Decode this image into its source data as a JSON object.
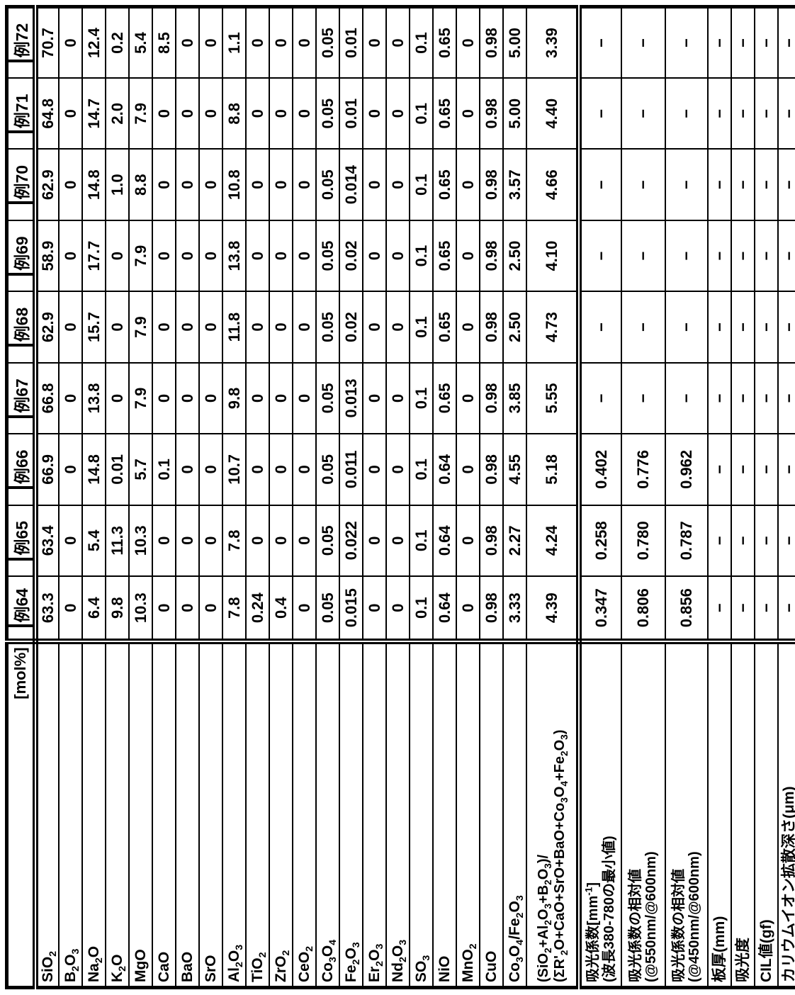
{
  "table": {
    "unit_label": "[mol%]",
    "column_headers": [
      "例64",
      "例65",
      "例66",
      "例67",
      "例68",
      "例69",
      "例70",
      "例71",
      "例72"
    ],
    "rows": [
      {
        "label": "SiO_2",
        "values": [
          "63.3",
          "63.4",
          "66.9",
          "66.8",
          "62.9",
          "58.9",
          "62.9",
          "64.8",
          "70.7"
        ]
      },
      {
        "label": "B_2O_3",
        "values": [
          "0",
          "0",
          "0",
          "0",
          "0",
          "0",
          "0",
          "0",
          "0"
        ]
      },
      {
        "label": "Na_2O",
        "values": [
          "6.4",
          "5.4",
          "14.8",
          "13.8",
          "15.7",
          "17.7",
          "14.8",
          "14.7",
          "12.4"
        ]
      },
      {
        "label": "K_2O",
        "values": [
          "9.8",
          "11.3",
          "0.01",
          "0",
          "0",
          "0",
          "1.0",
          "2.0",
          "0.2"
        ]
      },
      {
        "label": "MgO",
        "values": [
          "10.3",
          "10.3",
          "5.7",
          "7.9",
          "7.9",
          "7.9",
          "8.8",
          "7.9",
          "5.4"
        ]
      },
      {
        "label": "CaO",
        "values": [
          "0",
          "0",
          "0.1",
          "0",
          "0",
          "0",
          "0",
          "0",
          "8.5"
        ]
      },
      {
        "label": "BaO",
        "values": [
          "0",
          "0",
          "0",
          "0",
          "0",
          "0",
          "0",
          "0",
          "0"
        ]
      },
      {
        "label": "SrO",
        "values": [
          "0",
          "0",
          "0",
          "0",
          "0",
          "0",
          "0",
          "0",
          "0"
        ]
      },
      {
        "label": "Al_2O_3",
        "values": [
          "7.8",
          "7.8",
          "10.7",
          "9.8",
          "11.8",
          "13.8",
          "10.8",
          "8.8",
          "1.1"
        ]
      },
      {
        "label": "TiO_2",
        "values": [
          "0.24",
          "0",
          "0",
          "0",
          "0",
          "0",
          "0",
          "0",
          "0"
        ]
      },
      {
        "label": "ZrO_2",
        "values": [
          "0.4",
          "0",
          "0",
          "0",
          "0",
          "0",
          "0",
          "0",
          "0"
        ]
      },
      {
        "label": "CeO_2",
        "values": [
          "0",
          "0",
          "0",
          "0",
          "0",
          "0",
          "0",
          "0",
          "0"
        ]
      },
      {
        "label": "Co_3O_4",
        "values": [
          "0.05",
          "0.05",
          "0.05",
          "0.05",
          "0.05",
          "0.05",
          "0.05",
          "0.05",
          "0.05"
        ]
      },
      {
        "label": "Fe_2O_3",
        "values": [
          "0.015",
          "0.022",
          "0.011",
          "0.013",
          "0.02",
          "0.02",
          "0.014",
          "0.01",
          "0.01"
        ]
      },
      {
        "label": "Er_2O_3",
        "values": [
          "0",
          "0",
          "0",
          "0",
          "0",
          "0",
          "0",
          "0",
          "0"
        ]
      },
      {
        "label": "Nd_2O_3",
        "values": [
          "0",
          "0",
          "0",
          "0",
          "0",
          "0",
          "0",
          "0",
          "0"
        ]
      },
      {
        "label": "SO_3",
        "values": [
          "0.1",
          "0.1",
          "0.1",
          "0.1",
          "0.1",
          "0.1",
          "0.1",
          "0.1",
          "0.1"
        ]
      },
      {
        "label": "NiO",
        "values": [
          "0.64",
          "0.64",
          "0.64",
          "0.65",
          "0.65",
          "0.65",
          "0.65",
          "0.65",
          "0.65"
        ]
      },
      {
        "label": "MnO_2",
        "values": [
          "0",
          "0",
          "0",
          "0",
          "0",
          "0",
          "0",
          "0",
          "0"
        ]
      },
      {
        "label": "CuO",
        "values": [
          "0.98",
          "0.98",
          "0.98",
          "0.98",
          "0.98",
          "0.98",
          "0.98",
          "0.98",
          "0.98"
        ]
      },
      {
        "label": "Co_3O_4/Fe_2O_3",
        "values": [
          "3.33",
          "2.27",
          "4.55",
          "3.85",
          "2.50",
          "2.50",
          "3.57",
          "5.00",
          "5.00"
        ]
      },
      {
        "label": "(SiO_2+Al_2O_3+B_2O_3)/",
        "label2": "(ΣR'_2O+CaO+SrO+BaO+Co_3O_4+Fe_2O_3)",
        "section_end": true,
        "values": [
          "4.39",
          "4.24",
          "5.18",
          "5.55",
          "4.73",
          "4.10",
          "4.66",
          "4.40",
          "3.39"
        ]
      },
      {
        "label": "吸光係数[mm^{-1}]",
        "label2": "(波長380-780の最小値)",
        "values": [
          "0.347",
          "0.258",
          "0.402",
          "−",
          "−",
          "−",
          "−",
          "−",
          "−"
        ]
      },
      {
        "label": "吸光係数の相対値",
        "label2": "(@550nm/@600nm)",
        "values": [
          "0.806",
          "0.780",
          "0.776",
          "−",
          "−",
          "−",
          "−",
          "−",
          "−"
        ]
      },
      {
        "label": "吸光係数の相対値",
        "label2": "(@450nm/@600nm)",
        "values": [
          "0.856",
          "0.787",
          "0.962",
          "−",
          "−",
          "−",
          "−",
          "−",
          "−"
        ]
      },
      {
        "label": "板厚(mm)",
        "values": [
          "−",
          "−",
          "−",
          "−",
          "−",
          "−",
          "−",
          "−",
          "−"
        ]
      },
      {
        "label": "吸光度",
        "values": [
          "−",
          "−",
          "−",
          "−",
          "−",
          "−",
          "−",
          "−",
          "−"
        ]
      },
      {
        "label": "CIL値(gf)",
        "values": [
          "−",
          "−",
          "−",
          "−",
          "−",
          "−",
          "−",
          "−",
          "−"
        ]
      },
      {
        "label": "カリウムイオン拡散深さ(μm)",
        "values": [
          "−",
          "−",
          "−",
          "−",
          "−",
          "−",
          "−",
          "−",
          "−"
        ]
      }
    ]
  }
}
